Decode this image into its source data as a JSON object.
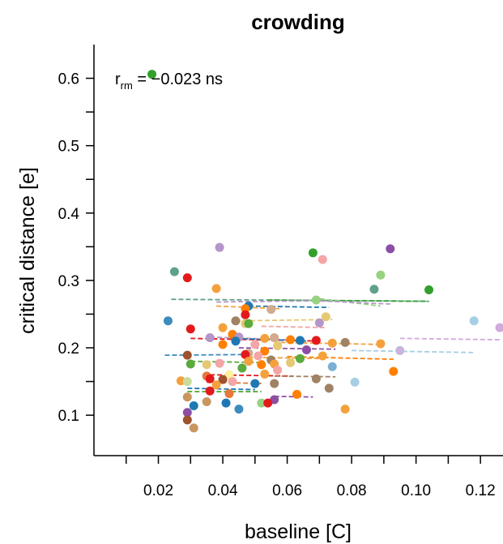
{
  "chart_data": {
    "type": "scatter",
    "title": "crowding",
    "xlabel": "baseline [C]",
    "ylabel": "critical distance [e]",
    "xlim": [
      0,
      0.127
    ],
    "ylim": [
      0.04,
      0.65
    ],
    "x_ticks": [
      0.02,
      0.04,
      0.06,
      0.08,
      0.1,
      0.12
    ],
    "x_tick_labels": [
      "0.02",
      "0.04",
      "0.06",
      "0.08",
      "0.10",
      "0.12"
    ],
    "x_minor_ticks": [
      0.01,
      0.03,
      0.05,
      0.07,
      0.09,
      0.11
    ],
    "y_ticks": [
      0.1,
      0.2,
      0.3,
      0.4,
      0.5,
      0.6
    ],
    "y_tick_labels": [
      "0.1",
      "0.2",
      "0.3",
      "0.4",
      "0.5",
      "0.6"
    ],
    "y_minor_ticks": [
      0.15,
      0.25,
      0.35,
      0.45,
      0.55
    ],
    "grid": false,
    "annotation": {
      "prefix": "r",
      "subscript": "rm",
      "text": " = −0.023 ns"
    },
    "points": [
      {
        "x": 0.018,
        "y": 0.606,
        "color": "#33a02c"
      },
      {
        "x": 0.039,
        "y": 0.349,
        "color": "#b496c8"
      },
      {
        "x": 0.068,
        "y": 0.341,
        "color": "#33a02c"
      },
      {
        "x": 0.071,
        "y": 0.331,
        "color": "#f4a5a5"
      },
      {
        "x": 0.092,
        "y": 0.347,
        "color": "#8c4fa5"
      },
      {
        "x": 0.025,
        "y": 0.313,
        "color": "#5fa08c"
      },
      {
        "x": 0.029,
        "y": 0.304,
        "color": "#e31a1c"
      },
      {
        "x": 0.089,
        "y": 0.308,
        "color": "#98d280"
      },
      {
        "x": 0.038,
        "y": 0.288,
        "color": "#f4a13c"
      },
      {
        "x": 0.087,
        "y": 0.287,
        "color": "#5fa08c"
      },
      {
        "x": 0.104,
        "y": 0.286,
        "color": "#33a02c"
      },
      {
        "x": 0.069,
        "y": 0.271,
        "color": "#98d280"
      },
      {
        "x": 0.048,
        "y": 0.262,
        "color": "#1f78b4"
      },
      {
        "x": 0.047,
        "y": 0.258,
        "color": "#ff7f00"
      },
      {
        "x": 0.055,
        "y": 0.257,
        "color": "#d2aa8c"
      },
      {
        "x": 0.072,
        "y": 0.246,
        "color": "#e6c873"
      },
      {
        "x": 0.023,
        "y": 0.24,
        "color": "#3c8cbe"
      },
      {
        "x": 0.047,
        "y": 0.249,
        "color": "#e31a1c"
      },
      {
        "x": 0.044,
        "y": 0.24,
        "color": "#a08264"
      },
      {
        "x": 0.07,
        "y": 0.237,
        "color": "#b496c8"
      },
      {
        "x": 0.047,
        "y": 0.236,
        "color": "#e6c873"
      },
      {
        "x": 0.048,
        "y": 0.236,
        "color": "#5aaa3c"
      },
      {
        "x": 0.03,
        "y": 0.228,
        "color": "#e31a1c"
      },
      {
        "x": 0.04,
        "y": 0.23,
        "color": "#f4a13c"
      },
      {
        "x": 0.118,
        "y": 0.24,
        "color": "#a6cee3"
      },
      {
        "x": 0.126,
        "y": 0.23,
        "color": "#d2aadc"
      },
      {
        "x": 0.043,
        "y": 0.22,
        "color": "#ff7f00"
      },
      {
        "x": 0.045,
        "y": 0.216,
        "color": "#b496c8"
      },
      {
        "x": 0.036,
        "y": 0.215,
        "color": "#b496c8"
      },
      {
        "x": 0.053,
        "y": 0.214,
        "color": "#f4a13c"
      },
      {
        "x": 0.056,
        "y": 0.215,
        "color": "#d2aa8c"
      },
      {
        "x": 0.061,
        "y": 0.212,
        "color": "#ff7f00"
      },
      {
        "x": 0.064,
        "y": 0.211,
        "color": "#1f78b4"
      },
      {
        "x": 0.044,
        "y": 0.21,
        "color": "#1f78b4"
      },
      {
        "x": 0.069,
        "y": 0.211,
        "color": "#e31a1c"
      },
      {
        "x": 0.074,
        "y": 0.207,
        "color": "#f4a13c"
      },
      {
        "x": 0.078,
        "y": 0.208,
        "color": "#a08264"
      },
      {
        "x": 0.089,
        "y": 0.206,
        "color": "#f4a13c"
      },
      {
        "x": 0.05,
        "y": 0.205,
        "color": "#f4a5a5"
      },
      {
        "x": 0.04,
        "y": 0.205,
        "color": "#ff7f00"
      },
      {
        "x": 0.057,
        "y": 0.203,
        "color": "#e6c873"
      },
      {
        "x": 0.066,
        "y": 0.197,
        "color": "#8c4fa5"
      },
      {
        "x": 0.095,
        "y": 0.196,
        "color": "#c8b4dc"
      },
      {
        "x": 0.029,
        "y": 0.189,
        "color": "#a0522d"
      },
      {
        "x": 0.048,
        "y": 0.192,
        "color": "#d2aa8c"
      },
      {
        "x": 0.053,
        "y": 0.195,
        "color": "#ff7f00"
      },
      {
        "x": 0.051,
        "y": 0.188,
        "color": "#f4a5a5"
      },
      {
        "x": 0.047,
        "y": 0.19,
        "color": "#e31a1c"
      },
      {
        "x": 0.071,
        "y": 0.188,
        "color": "#f4a13c"
      },
      {
        "x": 0.064,
        "y": 0.184,
        "color": "#5aaa3c"
      },
      {
        "x": 0.055,
        "y": 0.182,
        "color": "#a08264"
      },
      {
        "x": 0.056,
        "y": 0.176,
        "color": "#f4a13c"
      },
      {
        "x": 0.061,
        "y": 0.178,
        "color": "#e6c873"
      },
      {
        "x": 0.03,
        "y": 0.176,
        "color": "#5aaa3c"
      },
      {
        "x": 0.039,
        "y": 0.177,
        "color": "#f4a5a5"
      },
      {
        "x": 0.035,
        "y": 0.175,
        "color": "#e6c873"
      },
      {
        "x": 0.048,
        "y": 0.18,
        "color": "#f4a13c"
      },
      {
        "x": 0.046,
        "y": 0.17,
        "color": "#5aaa3c"
      },
      {
        "x": 0.052,
        "y": 0.175,
        "color": "#ff7f00"
      },
      {
        "x": 0.074,
        "y": 0.172,
        "color": "#7bafd4"
      },
      {
        "x": 0.057,
        "y": 0.167,
        "color": "#f4a5a5"
      },
      {
        "x": 0.093,
        "y": 0.165,
        "color": "#ff7f00"
      },
      {
        "x": 0.042,
        "y": 0.16,
        "color": "#fff09b"
      },
      {
        "x": 0.053,
        "y": 0.161,
        "color": "#f4a13c"
      },
      {
        "x": 0.035,
        "y": 0.158,
        "color": "#e6783c"
      },
      {
        "x": 0.036,
        "y": 0.154,
        "color": "#e31a1c"
      },
      {
        "x": 0.04,
        "y": 0.153,
        "color": "#a0522d"
      },
      {
        "x": 0.043,
        "y": 0.15,
        "color": "#f4a5a5"
      },
      {
        "x": 0.027,
        "y": 0.151,
        "color": "#f4a13c"
      },
      {
        "x": 0.029,
        "y": 0.15,
        "color": "#c8dc9b"
      },
      {
        "x": 0.05,
        "y": 0.147,
        "color": "#1f78b4"
      },
      {
        "x": 0.056,
        "y": 0.147,
        "color": "#a08264"
      },
      {
        "x": 0.069,
        "y": 0.154,
        "color": "#a08264"
      },
      {
        "x": 0.038,
        "y": 0.145,
        "color": "#f4a13c"
      },
      {
        "x": 0.073,
        "y": 0.14,
        "color": "#a08264"
      },
      {
        "x": 0.081,
        "y": 0.149,
        "color": "#a6cee3"
      },
      {
        "x": 0.036,
        "y": 0.136,
        "color": "#e31a1c"
      },
      {
        "x": 0.042,
        "y": 0.132,
        "color": "#e6783c"
      },
      {
        "x": 0.063,
        "y": 0.131,
        "color": "#ff7f00"
      },
      {
        "x": 0.029,
        "y": 0.127,
        "color": "#c8965f"
      },
      {
        "x": 0.056,
        "y": 0.123,
        "color": "#8c4fa5"
      },
      {
        "x": 0.035,
        "y": 0.12,
        "color": "#c8965f"
      },
      {
        "x": 0.041,
        "y": 0.118,
        "color": "#1f78b4"
      },
      {
        "x": 0.052,
        "y": 0.118,
        "color": "#98d280"
      },
      {
        "x": 0.054,
        "y": 0.118,
        "color": "#e31a1c"
      },
      {
        "x": 0.031,
        "y": 0.114,
        "color": "#1f78b4"
      },
      {
        "x": 0.045,
        "y": 0.109,
        "color": "#3c8cbe"
      },
      {
        "x": 0.078,
        "y": 0.109,
        "color": "#f4a13c"
      },
      {
        "x": 0.029,
        "y": 0.104,
        "color": "#8c4fa5"
      },
      {
        "x": 0.029,
        "y": 0.093,
        "color": "#a0522d"
      },
      {
        "x": 0.031,
        "y": 0.081,
        "color": "#c8965f"
      }
    ],
    "lines": [
      {
        "x1": 0.024,
        "x2": 0.104,
        "y1": 0.272,
        "y2": 0.269,
        "color": "#5fa08c"
      },
      {
        "x1": 0.054,
        "x2": 0.104,
        "y1": 0.271,
        "y2": 0.269,
        "color": "#33a02c"
      },
      {
        "x1": 0.038,
        "x2": 0.071,
        "y1": 0.268,
        "y2": 0.27,
        "color": "#b496c8"
      },
      {
        "x1": 0.068,
        "x2": 0.089,
        "y1": 0.274,
        "y2": 0.262,
        "color": "#98d280"
      },
      {
        "x1": 0.068,
        "x2": 0.092,
        "y1": 0.27,
        "y2": 0.265,
        "color": "#b496c8"
      },
      {
        "x1": 0.048,
        "x2": 0.073,
        "y1": 0.262,
        "y2": 0.26,
        "color": "#1f78b4"
      },
      {
        "x1": 0.038,
        "x2": 0.058,
        "y1": 0.262,
        "y2": 0.258,
        "color": "#f4a13c"
      },
      {
        "x1": 0.044,
        "x2": 0.074,
        "y1": 0.24,
        "y2": 0.242,
        "color": "#e6c873"
      },
      {
        "x1": 0.052,
        "x2": 0.072,
        "y1": 0.232,
        "y2": 0.23,
        "color": "#f4a5a5"
      },
      {
        "x1": 0.03,
        "x2": 0.07,
        "y1": 0.214,
        "y2": 0.21,
        "color": "#e31a1c"
      },
      {
        "x1": 0.036,
        "x2": 0.06,
        "y1": 0.216,
        "y2": 0.212,
        "color": "#b496c8"
      },
      {
        "x1": 0.044,
        "x2": 0.066,
        "y1": 0.214,
        "y2": 0.21,
        "color": "#1f78b4"
      },
      {
        "x1": 0.058,
        "x2": 0.089,
        "y1": 0.208,
        "y2": 0.205,
        "color": "#f4a13c"
      },
      {
        "x1": 0.095,
        "x2": 0.126,
        "y1": 0.214,
        "y2": 0.212,
        "color": "#d2aadc"
      },
      {
        "x1": 0.08,
        "x2": 0.118,
        "y1": 0.196,
        "y2": 0.193,
        "color": "#a6cee3"
      },
      {
        "x1": 0.022,
        "x2": 0.047,
        "y1": 0.189,
        "y2": 0.19,
        "color": "#3c8cbe"
      },
      {
        "x1": 0.045,
        "x2": 0.075,
        "y1": 0.2,
        "y2": 0.198,
        "color": "#8c4fa5"
      },
      {
        "x1": 0.06,
        "x2": 0.093,
        "y1": 0.187,
        "y2": 0.183,
        "color": "#ff7f00"
      },
      {
        "x1": 0.048,
        "x2": 0.071,
        "y1": 0.186,
        "y2": 0.184,
        "color": "#f4a13c"
      },
      {
        "x1": 0.03,
        "x2": 0.053,
        "y1": 0.18,
        "y2": 0.178,
        "color": "#5aaa3c"
      },
      {
        "x1": 0.036,
        "x2": 0.062,
        "y1": 0.16,
        "y2": 0.158,
        "color": "#e31a1c"
      },
      {
        "x1": 0.056,
        "x2": 0.075,
        "y1": 0.158,
        "y2": 0.157,
        "color": "#a08264"
      },
      {
        "x1": 0.035,
        "x2": 0.052,
        "y1": 0.149,
        "y2": 0.147,
        "color": "#e6783c"
      },
      {
        "x1": 0.029,
        "x2": 0.05,
        "y1": 0.14,
        "y2": 0.138,
        "color": "#1f78b4"
      },
      {
        "x1": 0.029,
        "x2": 0.052,
        "y1": 0.135,
        "y2": 0.135,
        "color": "#5aaa3c"
      },
      {
        "x1": 0.056,
        "x2": 0.068,
        "y1": 0.128,
        "y2": 0.127,
        "color": "#8c4fa5"
      }
    ]
  }
}
